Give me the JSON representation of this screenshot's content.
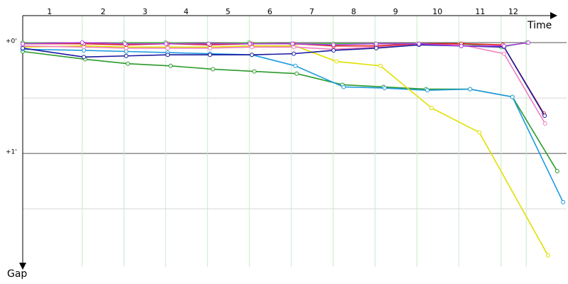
{
  "chart_data": {
    "type": "line",
    "x_label": "Time",
    "y_label": "Gap",
    "xlim": [
      0,
      13
    ],
    "ylim": [
      -0.25,
      2.05
    ],
    "xticks": [
      {
        "value": 0.64,
        "label": "1"
      },
      {
        "value": 1.92,
        "label": "2"
      },
      {
        "value": 2.92,
        "label": "3"
      },
      {
        "value": 3.9,
        "label": "4"
      },
      {
        "value": 4.9,
        "label": "5"
      },
      {
        "value": 5.9,
        "label": "6"
      },
      {
        "value": 6.9,
        "label": "7"
      },
      {
        "value": 7.9,
        "label": "8"
      },
      {
        "value": 8.9,
        "label": "9"
      },
      {
        "value": 9.9,
        "label": "10"
      },
      {
        "value": 10.92,
        "label": "11"
      },
      {
        "value": 11.71,
        "label": "12"
      }
    ],
    "lap_lines": [
      1.42,
      2.42,
      3.41,
      4.41,
      5.41,
      6.41,
      7.41,
      8.41,
      9.41,
      10.41,
      11.42,
      12.02
    ],
    "yticks": [
      {
        "value": 0,
        "label": "+0'"
      },
      {
        "value": 1,
        "label": "+1'"
      }
    ],
    "minor_yticks": [
      0.5,
      1.5
    ],
    "series": [
      {
        "color": "#40c040",
        "x": [
          0,
          1.42,
          2.42,
          3.41,
          4.41,
          5.41,
          6.41,
          7.41,
          8.41,
          9.41,
          10.41,
          11.42,
          12.03
        ],
        "values": [
          0,
          0.01,
          0,
          0,
          0.01,
          0,
          0.01,
          0.01,
          0.01,
          0.01,
          0.01,
          0.04,
          0
        ]
      },
      {
        "color": "#2a9a2a",
        "x": [
          0,
          1.49,
          2.51,
          3.53,
          4.54,
          5.53,
          6.54,
          7.63,
          8.61,
          9.63,
          10.68,
          11.69,
          12.76
        ],
        "values": [
          0.08,
          0.15,
          0.19,
          0.21,
          0.24,
          0.26,
          0.28,
          0.38,
          0.4,
          0.42,
          0.42,
          0.49,
          1.16
        ]
      },
      {
        "color": "#1e9be0",
        "x": [
          0,
          1.46,
          2.47,
          3.46,
          4.47,
          5.47,
          6.51,
          7.66,
          8.64,
          9.66,
          10.68,
          11.69,
          12.9
        ],
        "values": [
          0.06,
          0.07,
          0.08,
          0.09,
          0.1,
          0.11,
          0.21,
          0.4,
          0.41,
          0.43,
          0.42,
          0.49,
          1.44
        ]
      },
      {
        "color": "#e0e000",
        "x": [
          0,
          1.46,
          2.47,
          3.46,
          4.47,
          5.47,
          6.51,
          7.49,
          8.54,
          9.76,
          10.9,
          12.54
        ],
        "values": [
          0.04,
          0.03,
          0.04,
          0.04,
          0.04,
          0.03,
          0.03,
          0.17,
          0.21,
          0.59,
          0.81,
          1.92
        ]
      },
      {
        "color": "#f080c0",
        "x": [
          0,
          1.46,
          2.47,
          3.46,
          4.47,
          5.47,
          6.47,
          7.42,
          8.44,
          9.46,
          10.47,
          11.49,
          12.47
        ],
        "values": [
          0.03,
          0.04,
          0.05,
          0.05,
          0.05,
          0.04,
          0.04,
          0.06,
          0.04,
          0.02,
          0.02,
          0.1,
          0.73
        ]
      },
      {
        "color": "#e02020",
        "x": [
          0,
          1.46,
          2.47,
          3.46,
          4.47,
          5.47,
          6.47,
          7.42,
          8.44,
          9.46,
          10.47,
          11.46,
          12.44
        ],
        "values": [
          0.01,
          0.01,
          0.02,
          0.01,
          0.02,
          0.01,
          0.01,
          0.03,
          0.03,
          0.01,
          0.01,
          0.02,
          0.64
        ]
      },
      {
        "color": "#1a1aa0",
        "x": [
          0,
          1.46,
          2.47,
          3.46,
          4.47,
          5.47,
          6.47,
          7.42,
          8.44,
          9.46,
          10.47,
          11.49,
          12.46
        ],
        "values": [
          0.05,
          0.13,
          0.12,
          0.11,
          0.11,
          0.11,
          0.1,
          0.07,
          0.05,
          0.02,
          0.03,
          0.04,
          0.66
        ]
      },
      {
        "color": "#b040e0",
        "x": [
          0,
          1.42,
          2.44,
          3.42,
          4.44,
          5.42,
          6.44,
          7.42,
          8.44,
          9.46,
          10.47,
          11.49,
          12.07
        ],
        "values": [
          0.01,
          0,
          0.01,
          0.01,
          0.01,
          0.01,
          0.01,
          0.02,
          0.01,
          0.01,
          0.03,
          0.03,
          0
        ]
      }
    ]
  }
}
